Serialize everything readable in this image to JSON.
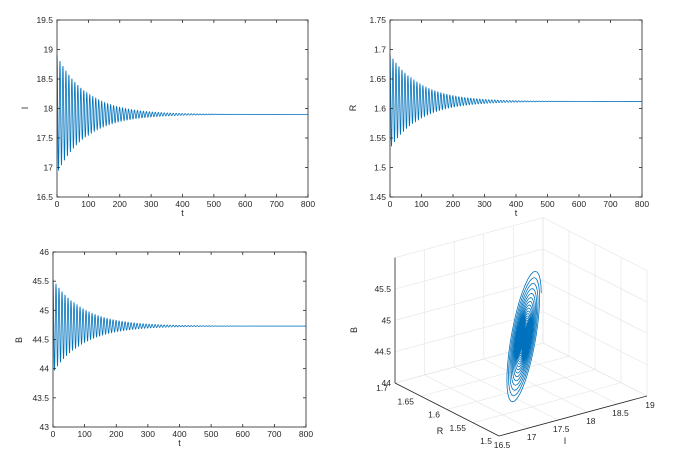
{
  "chart_data": [
    {
      "type": "line",
      "id": "I_vs_t",
      "xlabel": "t",
      "ylabel": "I",
      "xlim": [
        0,
        800
      ],
      "ylim": [
        16.5,
        19.5
      ],
      "xticks": [
        "0",
        "100",
        "200",
        "300",
        "400",
        "500",
        "600",
        "700",
        "800"
      ],
      "yticks": [
        "16.5",
        "17",
        "17.5",
        "18",
        "18.5",
        "19",
        "19.5"
      ],
      "color": "#0072bd",
      "grid": false,
      "series": [
        {
          "equilibrium": 17.9,
          "initial_amplitude": 1.0,
          "decay_time_constant": 95,
          "oscillation_period": 9.5,
          "x": [
            0,
            50,
            100,
            150,
            200,
            250,
            300,
            350,
            400,
            500,
            600,
            700,
            800
          ],
          "upper_envelope": [
            18.9,
            18.5,
            18.25,
            18.1,
            18.02,
            17.96,
            17.93,
            17.92,
            17.91,
            17.9,
            17.9,
            17.9,
            17.9
          ],
          "lower_envelope": [
            16.9,
            17.3,
            17.55,
            17.7,
            17.78,
            17.84,
            17.87,
            17.88,
            17.89,
            17.9,
            17.9,
            17.9,
            17.9
          ]
        }
      ]
    },
    {
      "type": "line",
      "id": "R_vs_t",
      "xlabel": "t",
      "ylabel": "R",
      "xlim": [
        0,
        800
      ],
      "ylim": [
        1.45,
        1.75
      ],
      "xticks": [
        "0",
        "100",
        "200",
        "300",
        "400",
        "500",
        "600",
        "700",
        "800"
      ],
      "yticks": [
        "1.45",
        "1.5",
        "1.55",
        "1.6",
        "1.65",
        "1.7",
        "1.75"
      ],
      "color": "#0072bd",
      "grid": false,
      "series": [
        {
          "equilibrium": 1.612,
          "initial_amplitude": 0.08,
          "decay_time_constant": 95,
          "oscillation_period": 9.5,
          "x": [
            0,
            50,
            100,
            150,
            200,
            250,
            300,
            400,
            500,
            800
          ],
          "upper_envelope": [
            1.692,
            1.66,
            1.64,
            1.628,
            1.621,
            1.617,
            1.615,
            1.613,
            1.612,
            1.612
          ],
          "lower_envelope": [
            1.532,
            1.564,
            1.584,
            1.596,
            1.603,
            1.607,
            1.609,
            1.611,
            1.612,
            1.612
          ]
        }
      ]
    },
    {
      "type": "line",
      "id": "B_vs_t",
      "xlabel": "t",
      "ylabel": "B",
      "xlim": [
        0,
        800
      ],
      "ylim": [
        43,
        46
      ],
      "xticks": [
        "0",
        "100",
        "200",
        "300",
        "400",
        "500",
        "600",
        "700",
        "800"
      ],
      "yticks": [
        "43",
        "43.5",
        "44",
        "44.5",
        "45",
        "45.5",
        "46"
      ],
      "color": "#0072bd",
      "grid": false,
      "series": [
        {
          "equilibrium": 44.73,
          "initial_amplitude": 0.8,
          "decay_time_constant": 95,
          "oscillation_period": 9.5,
          "x": [
            0,
            50,
            100,
            150,
            200,
            250,
            300,
            400,
            500,
            800
          ],
          "upper_envelope": [
            45.55,
            45.2,
            45.0,
            44.88,
            44.81,
            44.77,
            44.75,
            44.74,
            44.73,
            44.73
          ],
          "lower_envelope": [
            43.93,
            44.26,
            44.46,
            44.58,
            44.65,
            44.69,
            44.71,
            44.72,
            44.73,
            44.73
          ]
        }
      ]
    },
    {
      "type": "line3d",
      "id": "phase_portrait_I_R_B",
      "xlabel": "I",
      "ylabel": "R",
      "zlabel": "B",
      "xlim": [
        16.5,
        19
      ],
      "ylim": [
        1.5,
        1.7
      ],
      "zlim": [
        44,
        45.5
      ],
      "xticks": [
        "16.5",
        "17",
        "17.5",
        "18",
        "18.5",
        "19"
      ],
      "yticks": [
        "1.5",
        "1.55",
        "1.6",
        "1.65",
        "1.7"
      ],
      "zticks": [
        "44",
        "44.5",
        "45",
        "45.5"
      ],
      "color": "#0072bd",
      "grid": true,
      "series": [
        {
          "equilibrium": {
            "I": 17.9,
            "R": 1.612,
            "B": 44.73
          },
          "start": {
            "I": 18.9,
            "R": 1.692,
            "B": 45.55
          },
          "type_description": "inward spiral converging to equilibrium"
        }
      ]
    }
  ]
}
